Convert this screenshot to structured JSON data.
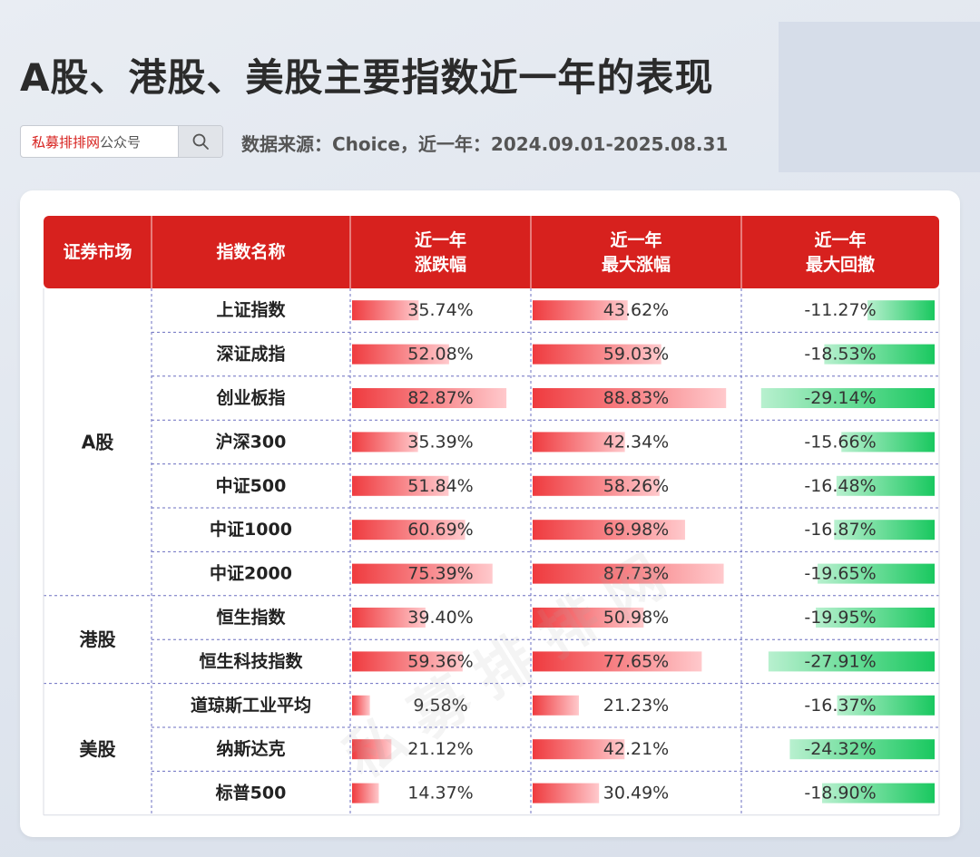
{
  "header": {
    "title": "A股、港股、美股主要指数近一年的表现",
    "source": "数据来源：Choice，近一年：2024.09.01-2025.08.31"
  },
  "search": {
    "brand": "私募排排网",
    "suffix": "公众号",
    "icon": "search-icon"
  },
  "watermark": "私募排排网",
  "colors": {
    "header_bg": "#d7211e",
    "positive": "#ef3b3f",
    "negative": "#19c85f",
    "grid": "#6b6fc0"
  },
  "chart_data": {
    "type": "table",
    "columns": [
      "证券市场",
      "指数名称",
      "近一年\n涨跌幅",
      "近一年\n最大涨幅",
      "近一年\n最大回撤"
    ],
    "markets": [
      {
        "name": "A股",
        "rows": 7
      },
      {
        "name": "港股",
        "rows": 2
      },
      {
        "name": "美股",
        "rows": 3
      }
    ],
    "rows": [
      {
        "market": "A股",
        "index": "上证指数",
        "change": 35.74,
        "max_gain": 43.62,
        "max_drawdown": -11.27
      },
      {
        "market": "A股",
        "index": "深证成指",
        "change": 52.08,
        "max_gain": 59.03,
        "max_drawdown": -18.53
      },
      {
        "market": "A股",
        "index": "创业板指",
        "change": 82.87,
        "max_gain": 88.83,
        "max_drawdown": -29.14
      },
      {
        "market": "A股",
        "index": "沪深300",
        "change": 35.39,
        "max_gain": 42.34,
        "max_drawdown": -15.66
      },
      {
        "market": "A股",
        "index": "中证500",
        "change": 51.84,
        "max_gain": 58.26,
        "max_drawdown": -16.48
      },
      {
        "market": "A股",
        "index": "中证1000",
        "change": 60.69,
        "max_gain": 69.98,
        "max_drawdown": -16.87
      },
      {
        "market": "A股",
        "index": "中证2000",
        "change": 75.39,
        "max_gain": 87.73,
        "max_drawdown": -19.65
      },
      {
        "market": "港股",
        "index": "恒生指数",
        "change": 39.4,
        "max_gain": 50.98,
        "max_drawdown": -19.95
      },
      {
        "market": "港股",
        "index": "恒生科技指数",
        "change": 59.36,
        "max_gain": 77.65,
        "max_drawdown": -27.91
      },
      {
        "market": "美股",
        "index": "道琼斯工业平均",
        "change": 9.58,
        "max_gain": 21.23,
        "max_drawdown": -16.37
      },
      {
        "market": "美股",
        "index": "纳斯达克",
        "change": 21.12,
        "max_gain": 42.21,
        "max_drawdown": -24.32
      },
      {
        "market": "美股",
        "index": "标普500",
        "change": 14.37,
        "max_gain": 30.49,
        "max_drawdown": -18.9
      }
    ]
  }
}
